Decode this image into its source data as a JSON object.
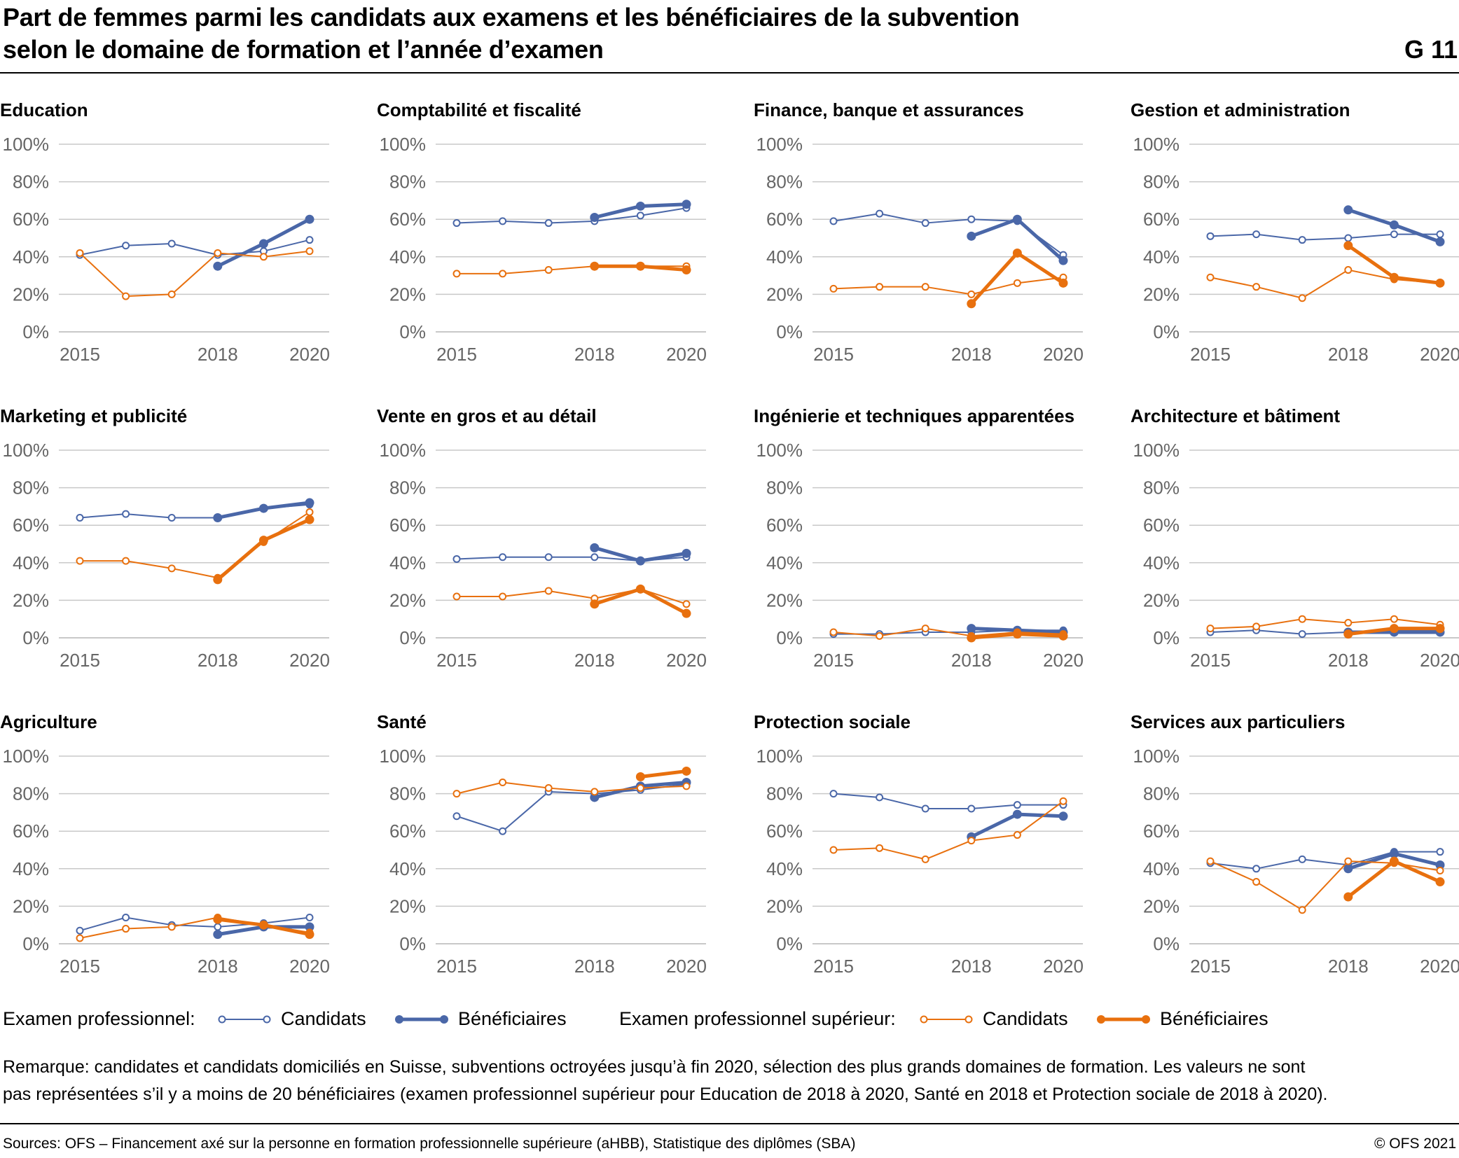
{
  "header": {
    "title_line1": "Part de femmes parmi les candidats aux examens et les bénéficiaires de la subvention",
    "title_line2": "selon le domaine de formation et l’année d’examen",
    "figure_number": "G 11"
  },
  "colors": {
    "blue": "#4a67a8",
    "orange": "#e8700e",
    "grid": "#c8c8c8",
    "axis_text": "#666666"
  },
  "legend": {
    "group1_label": "Examen professionnel:",
    "group1_candidates": "Candidats",
    "group1_beneficiaries": "Bénéficiaires",
    "group2_label": "Examen professionnel supérieur:",
    "group2_candidates": "Candidats",
    "group2_beneficiaries": "Bénéficiaires"
  },
  "note": {
    "line1": "Remarque: candidates et candidats domiciliés en Suisse, subventions octroyées jusqu’à fin 2020, sélection des plus grands domaines de formation. Les valeurs ne sont",
    "line2": "pas représentées s’il y a moins de 20 bénéficiaires (examen professionnel supérieur pour Education de 2018 à 2020, Santé en 2018 et Protection sociale de 2018 à 2020)."
  },
  "footer": {
    "sources": "Sources: OFS – Financement axé sur la personne en formation professionnelle supérieure (aHBB), Statistique  des diplômes (SBA)",
    "copyright": "© OFS 2021"
  },
  "chart_data": [
    {
      "type": "line",
      "title": "Education",
      "x": [
        2015,
        2016,
        2017,
        2018,
        2019,
        2020
      ],
      "xticks": [
        "2015",
        "2018",
        "2020"
      ],
      "yticks": [
        "100%",
        "80%",
        "60%",
        "40%",
        "20%",
        "0%"
      ],
      "ylim": [
        0,
        100
      ],
      "series": [
        {
          "name": "Examen professionnel - Candidats",
          "values": [
            41,
            46,
            47,
            41,
            43,
            49
          ]
        },
        {
          "name": "Examen professionnel - Bénéficiaires",
          "values": [
            null,
            null,
            null,
            35,
            47,
            60
          ]
        },
        {
          "name": "Examen professionnel supérieur - Candidats",
          "values": [
            42,
            19,
            20,
            42,
            40,
            43
          ]
        },
        {
          "name": "Examen professionnel supérieur - Bénéficiaires",
          "values": [
            null,
            null,
            null,
            null,
            null,
            null
          ]
        }
      ]
    },
    {
      "type": "line",
      "title": "Comptabilité et fiscalité",
      "x": [
        2015,
        2016,
        2017,
        2018,
        2019,
        2020
      ],
      "xticks": [
        "2015",
        "2018",
        "2020"
      ],
      "yticks": [
        "100%",
        "80%",
        "60%",
        "40%",
        "20%",
        "0%"
      ],
      "ylim": [
        0,
        100
      ],
      "series": [
        {
          "name": "Examen professionnel - Candidats",
          "values": [
            58,
            59,
            58,
            59,
            62,
            66
          ]
        },
        {
          "name": "Examen professionnel - Bénéficiaires",
          "values": [
            null,
            null,
            null,
            61,
            67,
            68
          ]
        },
        {
          "name": "Examen professionnel supérieur - Candidats",
          "values": [
            31,
            31,
            33,
            35,
            35,
            35
          ]
        },
        {
          "name": "Examen professionnel supérieur - Bénéficiaires",
          "values": [
            null,
            null,
            null,
            35,
            35,
            33
          ]
        }
      ]
    },
    {
      "type": "line",
      "title": "Finance, banque et assurances",
      "x": [
        2015,
        2016,
        2017,
        2018,
        2019,
        2020
      ],
      "xticks": [
        "2015",
        "2018",
        "2020"
      ],
      "yticks": [
        "100%",
        "80%",
        "60%",
        "40%",
        "20%",
        "0%"
      ],
      "ylim": [
        0,
        100
      ],
      "series": [
        {
          "name": "Examen professionnel - Candidats",
          "values": [
            59,
            63,
            58,
            60,
            59,
            41
          ]
        },
        {
          "name": "Examen professionnel - Bénéficiaires",
          "values": [
            null,
            null,
            null,
            51,
            60,
            38
          ]
        },
        {
          "name": "Examen professionnel supérieur - Candidats",
          "values": [
            23,
            24,
            24,
            20,
            26,
            29
          ]
        },
        {
          "name": "Examen professionnel supérieur - Bénéficiaires",
          "values": [
            null,
            null,
            null,
            15,
            42,
            26
          ]
        }
      ]
    },
    {
      "type": "line",
      "title": "Gestion et administration",
      "x": [
        2015,
        2016,
        2017,
        2018,
        2019,
        2020
      ],
      "xticks": [
        "2015",
        "2018",
        "2020"
      ],
      "yticks": [
        "100%",
        "80%",
        "60%",
        "40%",
        "20%",
        "0%"
      ],
      "ylim": [
        0,
        100
      ],
      "series": [
        {
          "name": "Examen professionnel - Candidats",
          "values": [
            51,
            52,
            49,
            50,
            52,
            52
          ]
        },
        {
          "name": "Examen professionnel - Bénéficiaires",
          "values": [
            null,
            null,
            null,
            65,
            57,
            48
          ]
        },
        {
          "name": "Examen professionnel supérieur - Candidats",
          "values": [
            29,
            24,
            18,
            33,
            28,
            26
          ]
        },
        {
          "name": "Examen professionnel supérieur - Bénéficiaires",
          "values": [
            null,
            null,
            null,
            46,
            29,
            26
          ]
        }
      ]
    },
    {
      "type": "line",
      "title": "Marketing et publicité",
      "x": [
        2015,
        2016,
        2017,
        2018,
        2019,
        2020
      ],
      "xticks": [
        "2015",
        "2018",
        "2020"
      ],
      "yticks": [
        "100%",
        "80%",
        "60%",
        "40%",
        "20%",
        "0%"
      ],
      "ylim": [
        0,
        100
      ],
      "series": [
        {
          "name": "Examen professionnel - Candidats",
          "values": [
            64,
            66,
            64,
            64,
            69,
            71
          ]
        },
        {
          "name": "Examen professionnel - Bénéficiaires",
          "values": [
            null,
            null,
            null,
            64,
            69,
            72
          ]
        },
        {
          "name": "Examen professionnel supérieur - Candidats",
          "values": [
            41,
            41,
            37,
            32,
            51,
            67
          ]
        },
        {
          "name": "Examen professionnel supérieur - Bénéficiaires",
          "values": [
            null,
            null,
            null,
            31,
            52,
            63
          ]
        }
      ]
    },
    {
      "type": "line",
      "title": "Vente en gros et au détail",
      "x": [
        2015,
        2016,
        2017,
        2018,
        2019,
        2020
      ],
      "xticks": [
        "2015",
        "2018",
        "2020"
      ],
      "yticks": [
        "100%",
        "80%",
        "60%",
        "40%",
        "20%",
        "0%"
      ],
      "ylim": [
        0,
        100
      ],
      "series": [
        {
          "name": "Examen professionnel - Candidats",
          "values": [
            42,
            43,
            43,
            43,
            41,
            43
          ]
        },
        {
          "name": "Examen professionnel - Bénéficiaires",
          "values": [
            null,
            null,
            null,
            48,
            41,
            45
          ]
        },
        {
          "name": "Examen professionnel supérieur - Candidats",
          "values": [
            22,
            22,
            25,
            21,
            26,
            18
          ]
        },
        {
          "name": "Examen professionnel supérieur - Bénéficiaires",
          "values": [
            null,
            null,
            null,
            18,
            26,
            13
          ]
        }
      ]
    },
    {
      "type": "line",
      "title": "Ingénierie et techniques apparentées",
      "x": [
        2015,
        2016,
        2017,
        2018,
        2019,
        2020
      ],
      "xticks": [
        "2015",
        "2018",
        "2020"
      ],
      "yticks": [
        "100%",
        "80%",
        "60%",
        "40%",
        "20%",
        "0%"
      ],
      "ylim": [
        0,
        100
      ],
      "series": [
        {
          "name": "Examen professionnel - Candidats",
          "values": [
            2,
            2,
            3,
            3,
            4,
            4
          ]
        },
        {
          "name": "Examen professionnel - Bénéficiaires",
          "values": [
            null,
            null,
            null,
            5,
            4,
            3
          ]
        },
        {
          "name": "Examen professionnel supérieur - Candidats",
          "values": [
            3,
            1,
            5,
            1,
            3,
            2
          ]
        },
        {
          "name": "Examen professionnel supérieur - Bénéficiaires",
          "values": [
            null,
            null,
            null,
            0,
            2,
            1
          ]
        }
      ]
    },
    {
      "type": "line",
      "title": "Architecture et bâtiment",
      "x": [
        2015,
        2016,
        2017,
        2018,
        2019,
        2020
      ],
      "xticks": [
        "2015",
        "2018",
        "2020"
      ],
      "yticks": [
        "100%",
        "80%",
        "60%",
        "40%",
        "20%",
        "0%"
      ],
      "ylim": [
        0,
        100
      ],
      "series": [
        {
          "name": "Examen professionnel - Candidats",
          "values": [
            3,
            4,
            2,
            3,
            4,
            4
          ]
        },
        {
          "name": "Examen professionnel - Bénéficiaires",
          "values": [
            null,
            null,
            null,
            3,
            3,
            3
          ]
        },
        {
          "name": "Examen professionnel supérieur - Candidats",
          "values": [
            5,
            6,
            10,
            8,
            10,
            7
          ]
        },
        {
          "name": "Examen professionnel supérieur - Bénéficiaires",
          "values": [
            null,
            null,
            null,
            2,
            5,
            5
          ]
        }
      ]
    },
    {
      "type": "line",
      "title": "Agriculture",
      "x": [
        2015,
        2016,
        2017,
        2018,
        2019,
        2020
      ],
      "xticks": [
        "2015",
        "2018",
        "2020"
      ],
      "yticks": [
        "100%",
        "80%",
        "60%",
        "40%",
        "20%",
        "0%"
      ],
      "ylim": [
        0,
        100
      ],
      "series": [
        {
          "name": "Examen professionnel - Candidats",
          "values": [
            7,
            14,
            10,
            9,
            11,
            14
          ]
        },
        {
          "name": "Examen professionnel - Bénéficiaires",
          "values": [
            null,
            null,
            null,
            5,
            9,
            9
          ]
        },
        {
          "name": "Examen professionnel supérieur - Candidats",
          "values": [
            3,
            8,
            9,
            14,
            10,
            6
          ]
        },
        {
          "name": "Examen professionnel supérieur - Bénéficiaires",
          "values": [
            null,
            null,
            null,
            13,
            10,
            5
          ]
        }
      ]
    },
    {
      "type": "line",
      "title": "Santé",
      "x": [
        2015,
        2016,
        2017,
        2018,
        2019,
        2020
      ],
      "xticks": [
        "2015",
        "2018",
        "2020"
      ],
      "yticks": [
        "100%",
        "80%",
        "60%",
        "40%",
        "20%",
        "0%"
      ],
      "ylim": [
        0,
        100
      ],
      "series": [
        {
          "name": "Examen professionnel - Candidats",
          "values": [
            68,
            60,
            81,
            80,
            82,
            85
          ]
        },
        {
          "name": "Examen professionnel - Bénéficiaires",
          "values": [
            null,
            null,
            null,
            78,
            84,
            86
          ]
        },
        {
          "name": "Examen professionnel supérieur - Candidats",
          "values": [
            80,
            86,
            83,
            81,
            83,
            84
          ]
        },
        {
          "name": "Examen professionnel supérieur - Bénéficiaires",
          "values": [
            null,
            null,
            null,
            null,
            89,
            92
          ]
        }
      ]
    },
    {
      "type": "line",
      "title": "Protection sociale",
      "x": [
        2015,
        2016,
        2017,
        2018,
        2019,
        2020
      ],
      "xticks": [
        "2015",
        "2018",
        "2020"
      ],
      "yticks": [
        "100%",
        "80%",
        "60%",
        "40%",
        "20%",
        "0%"
      ],
      "ylim": [
        0,
        100
      ],
      "series": [
        {
          "name": "Examen professionnel - Candidats",
          "values": [
            80,
            78,
            72,
            72,
            74,
            74
          ]
        },
        {
          "name": "Examen professionnel - Bénéficiaires",
          "values": [
            null,
            null,
            null,
            57,
            69,
            68
          ]
        },
        {
          "name": "Examen professionnel supérieur - Candidats",
          "values": [
            50,
            51,
            45,
            55,
            58,
            76
          ]
        },
        {
          "name": "Examen professionnel supérieur - Bénéficiaires",
          "values": [
            null,
            null,
            null,
            null,
            null,
            null
          ]
        }
      ]
    },
    {
      "type": "line",
      "title": "Services aux particuliers",
      "x": [
        2015,
        2016,
        2017,
        2018,
        2019,
        2020
      ],
      "xticks": [
        "2015",
        "2018",
        "2020"
      ],
      "yticks": [
        "100%",
        "80%",
        "60%",
        "40%",
        "20%",
        "0%"
      ],
      "ylim": [
        0,
        100
      ],
      "series": [
        {
          "name": "Examen professionnel - Candidats",
          "values": [
            43,
            40,
            45,
            42,
            49,
            49
          ]
        },
        {
          "name": "Examen professionnel - Bénéficiaires",
          "values": [
            null,
            null,
            null,
            40,
            48,
            42
          ]
        },
        {
          "name": "Examen professionnel supérieur - Candidats",
          "values": [
            44,
            33,
            18,
            44,
            43,
            39
          ]
        },
        {
          "name": "Examen professionnel supérieur - Bénéficiaires",
          "values": [
            null,
            null,
            null,
            25,
            44,
            33
          ]
        }
      ]
    }
  ]
}
